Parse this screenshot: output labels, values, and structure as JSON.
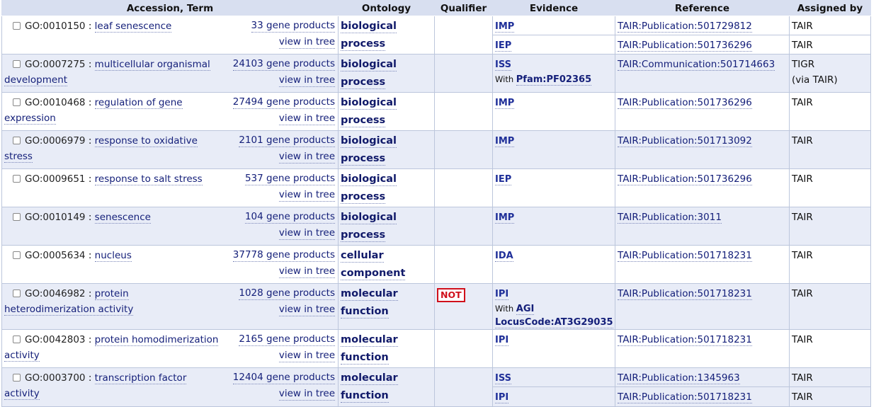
{
  "headers": {
    "accession_term": "Accession, Term",
    "ontology": "Ontology",
    "qualifier": "Qualifier",
    "evidence": "Evidence",
    "reference": "Reference",
    "assigned_by": "Assigned by"
  },
  "rows": [
    {
      "id": "GO:0010150",
      "term_l1": "leaf senescence",
      "term_l2": "",
      "gp": "33 gene products",
      "tree": "view in tree",
      "ont1": "biological",
      "ont2": "process",
      "qualifier": "",
      "ev": "IMP",
      "with_label": "",
      "with_val1": "",
      "with_val2": "",
      "ref": "TAIR:Publication:501729812",
      "by1": "TAIR",
      "by2": "",
      "sub": {
        "ev": "IEP",
        "ref": "TAIR:Publication:501736296",
        "by": "TAIR"
      }
    },
    {
      "id": "GO:0007275",
      "term_l1": "multicellular organismal",
      "term_l2": "development",
      "gp": "24103 gene products",
      "tree": "view in tree",
      "ont1": "biological",
      "ont2": "process",
      "qualifier": "",
      "ev": "ISS",
      "with_label": "With",
      "with_val1": "Pfam:PF02365",
      "with_val2": "",
      "ref": "TAIR:Communication:501714663",
      "by1": "TIGR",
      "by2": "(via TAIR)"
    },
    {
      "id": "GO:0010468",
      "term_l1": "regulation of gene",
      "term_l2": "expression",
      "gp": "27494 gene products",
      "tree": "view in tree",
      "ont1": "biological",
      "ont2": "process",
      "qualifier": "",
      "ev": "IMP",
      "with_label": "",
      "with_val1": "",
      "with_val2": "",
      "ref": "TAIR:Publication:501736296",
      "by1": "TAIR",
      "by2": ""
    },
    {
      "id": "GO:0006979",
      "term_l1": "response to oxidative",
      "term_l2": "stress",
      "gp": "2101 gene products",
      "tree": "view in tree",
      "ont1": "biological",
      "ont2": "process",
      "qualifier": "",
      "ev": "IMP",
      "with_label": "",
      "with_val1": "",
      "with_val2": "",
      "ref": "TAIR:Publication:501713092",
      "by1": "TAIR",
      "by2": ""
    },
    {
      "id": "GO:0009651",
      "term_l1": "response to salt stress",
      "term_l2": "",
      "gp": "537 gene products",
      "tree": "view in tree",
      "ont1": "biological",
      "ont2": "process",
      "qualifier": "",
      "ev": "IEP",
      "with_label": "",
      "with_val1": "",
      "with_val2": "",
      "ref": "TAIR:Publication:501736296",
      "by1": "TAIR",
      "by2": ""
    },
    {
      "id": "GO:0010149",
      "term_l1": "senescence",
      "term_l2": "",
      "gp": "104 gene products",
      "tree": "view in tree",
      "ont1": "biological",
      "ont2": "process",
      "qualifier": "",
      "ev": "IMP",
      "with_label": "",
      "with_val1": "",
      "with_val2": "",
      "ref": "TAIR:Publication:3011",
      "by1": "TAIR",
      "by2": ""
    },
    {
      "id": "GO:0005634",
      "term_l1": "nucleus",
      "term_l2": "",
      "gp": "37778 gene products",
      "tree": "view in tree",
      "ont1": "cellular",
      "ont2": "component",
      "qualifier": "",
      "ev": "IDA",
      "with_label": "",
      "with_val1": "",
      "with_val2": "",
      "ref": "TAIR:Publication:501718231",
      "by1": "TAIR",
      "by2": ""
    },
    {
      "id": "GO:0046982",
      "term_l1": "protein",
      "term_l2": "heterodimerization activity",
      "gp": "1028 gene products",
      "tree": "view in tree",
      "ont1": "molecular",
      "ont2": "function",
      "qualifier": "NOT",
      "ev": "IPI",
      "with_label": "With",
      "with_val1": "AGI",
      "with_val2": "LocusCode:AT3G29035",
      "ref": "TAIR:Publication:501718231",
      "by1": "TAIR",
      "by2": ""
    },
    {
      "id": "GO:0042803",
      "term_l1": "protein homodimerization",
      "term_l2": "activity",
      "gp": "2165 gene products",
      "tree": "view in tree",
      "ont1": "molecular",
      "ont2": "function",
      "qualifier": "",
      "ev": "IPI",
      "with_label": "",
      "with_val1": "",
      "with_val2": "",
      "ref": "TAIR:Publication:501718231",
      "by1": "TAIR",
      "by2": ""
    },
    {
      "id": "GO:0003700",
      "term_l1": "transcription factor",
      "term_l2": "activity",
      "gp": "12404 gene products",
      "tree": "view in tree",
      "ont1": "molecular",
      "ont2": "function",
      "qualifier": "",
      "ev": "ISS",
      "with_label": "",
      "with_val1": "",
      "with_val2": "",
      "ref": "TAIR:Publication:1345963",
      "by1": "TAIR",
      "by2": "",
      "sub": {
        "ev": "IPI",
        "ref": "TAIR:Publication:501718231",
        "by": "TAIR"
      }
    }
  ]
}
